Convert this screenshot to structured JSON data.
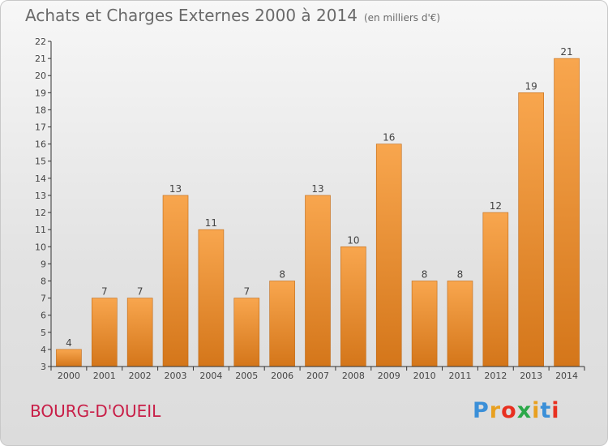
{
  "chart_data": {
    "type": "bar",
    "title": "Achats et Charges Externes 2000 à 2014",
    "subtitle": "(en milliers d'€)",
    "categories": [
      "2000",
      "2001",
      "2002",
      "2003",
      "2004",
      "2005",
      "2006",
      "2007",
      "2008",
      "2009",
      "2010",
      "2011",
      "2012",
      "2013",
      "2014"
    ],
    "values": [
      4,
      7,
      7,
      13,
      11,
      7,
      8,
      13,
      10,
      16,
      8,
      8,
      12,
      19,
      21
    ],
    "ylim": [
      3,
      22
    ],
    "yticks": [
      "3",
      "4",
      "5",
      "6",
      "7",
      "8",
      "9",
      "10",
      "11",
      "12",
      "13",
      "14",
      "15",
      "16",
      "17",
      "18",
      "19",
      "20",
      "21",
      "22"
    ],
    "grid": false,
    "xlabel": "",
    "ylabel": ""
  },
  "footer": {
    "commune": "BOURG-D'OUEIL",
    "logo_letters": [
      "P",
      "r",
      "o",
      "x",
      "i",
      "t",
      "i"
    ],
    "logo_colors": [
      "#3a8fd8",
      "#e8a020",
      "#e83020",
      "#2aa848",
      "#e8a020",
      "#3a8fd8",
      "#e83020"
    ]
  },
  "colors": {
    "bar_top": "#f8a64e",
    "bar_bottom": "#d4761a",
    "bar_edge": "#c06a16",
    "axis": "#333333",
    "label": "#444444"
  }
}
